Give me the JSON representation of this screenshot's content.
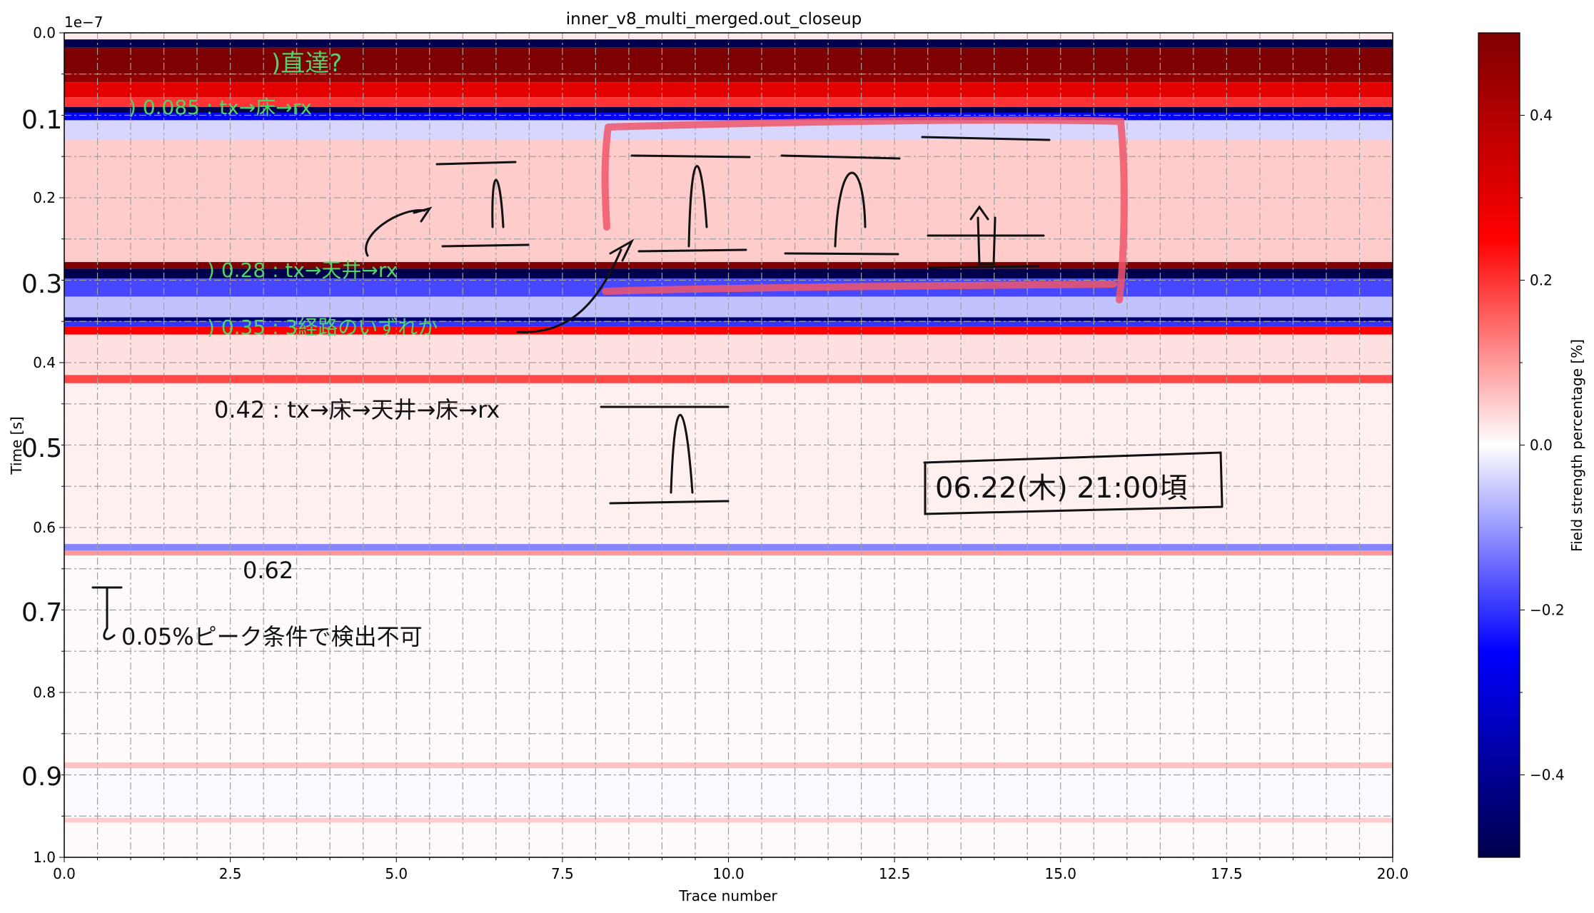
{
  "chart_data": {
    "type": "heatmap",
    "title": "inner_v8_multi_merged.out_closeup",
    "xlabel": "Trace number",
    "ylabel": "Time [s]",
    "y_offset_label": "1e−7",
    "xlim": [
      0,
      20
    ],
    "ylim": [
      1.0,
      0.0
    ],
    "x_ticks": [
      "0.0",
      "2.5",
      "5.0",
      "7.5",
      "10.0",
      "12.5",
      "15.0",
      "17.5",
      "20.0"
    ],
    "y_ticks": [
      "0.0",
      "0.2",
      "0.4",
      "0.6",
      "0.8",
      "1.0"
    ],
    "grid": true,
    "colorbar": {
      "label": "Field strength percentage [%]",
      "range": [
        -0.5,
        0.5
      ],
      "ticks": [
        "0.4",
        "0.2",
        "0.0",
        "−0.2",
        "−0.4"
      ],
      "colormap": [
        "#00004c",
        "#0000ff",
        "#ffffff",
        "#ff0000",
        "#7f0000"
      ]
    },
    "time_bands": [
      {
        "t0": 0.0,
        "t1": 0.008,
        "value": 0.02
      },
      {
        "t0": 0.008,
        "t1": 0.018,
        "value": -0.5
      },
      {
        "t0": 0.018,
        "t1": 0.05,
        "value": 0.5
      },
      {
        "t0": 0.05,
        "t1": 0.06,
        "value": 0.46
      },
      {
        "t0": 0.06,
        "t1": 0.078,
        "value": 0.3
      },
      {
        "t0": 0.078,
        "t1": 0.09,
        "value": 0.2
      },
      {
        "t0": 0.09,
        "t1": 0.097,
        "value": -0.5
      },
      {
        "t0": 0.097,
        "t1": 0.106,
        "value": -0.25
      },
      {
        "t0": 0.106,
        "t1": 0.13,
        "value": -0.04
      },
      {
        "t0": 0.13,
        "t1": 0.278,
        "value": 0.05
      },
      {
        "t0": 0.278,
        "t1": 0.286,
        "value": 0.5
      },
      {
        "t0": 0.286,
        "t1": 0.298,
        "value": -0.5
      },
      {
        "t0": 0.298,
        "t1": 0.32,
        "value": -0.18
      },
      {
        "t0": 0.32,
        "t1": 0.345,
        "value": -0.06
      },
      {
        "t0": 0.345,
        "t1": 0.35,
        "value": -0.45
      },
      {
        "t0": 0.35,
        "t1": 0.356,
        "value": -0.2
      },
      {
        "t0": 0.356,
        "t1": 0.366,
        "value": 0.25
      },
      {
        "t0": 0.366,
        "t1": 0.415,
        "value": 0.03
      },
      {
        "t0": 0.415,
        "t1": 0.425,
        "value": 0.18
      },
      {
        "t0": 0.425,
        "t1": 0.62,
        "value": 0.015
      },
      {
        "t0": 0.62,
        "t1": 0.628,
        "value": -0.12
      },
      {
        "t0": 0.628,
        "t1": 0.634,
        "value": 0.1
      },
      {
        "t0": 0.634,
        "t1": 0.885,
        "value": 0.005
      },
      {
        "t0": 0.885,
        "t1": 0.892,
        "value": 0.06
      },
      {
        "t0": 0.892,
        "t1": 0.952,
        "value": -0.005
      },
      {
        "t0": 0.952,
        "t1": 0.958,
        "value": 0.05
      },
      {
        "t0": 0.958,
        "t1": 1.0,
        "value": 0.005
      }
    ]
  },
  "annotations": {
    "green": [
      {
        "text": ")直達?"
      },
      {
        "text": ") 0.085 : tx→床→rx"
      },
      {
        "text": ") 0.28 : tx→天井→rx"
      },
      {
        "text": ") 0.35 : 3経路のいずれか"
      }
    ],
    "black": [
      {
        "text": "0.1"
      },
      {
        "text": "0.3"
      },
      {
        "text": "0.5"
      },
      {
        "text": "0.7"
      },
      {
        "text": "0.9"
      },
      {
        "text": "0.42 : tx→床→天井→床→rx"
      },
      {
        "text": "0.62"
      },
      {
        "text": "0.05%ピーク条件で検出不可"
      },
      {
        "text": "06.22(木) 21:00頃"
      }
    ]
  }
}
